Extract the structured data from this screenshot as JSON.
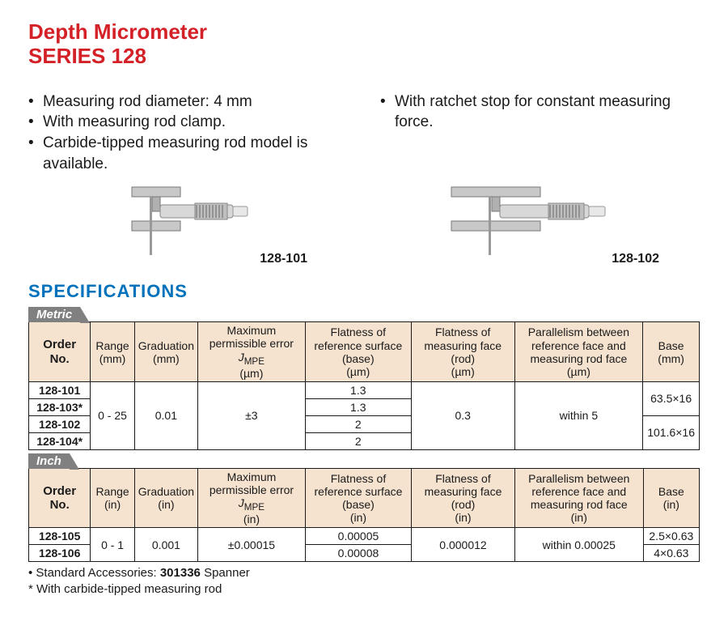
{
  "title_line1": "Depth Micrometer",
  "title_line2": "SERIES 128",
  "title_color": "#d42027",
  "features_left": [
    "Measuring rod diameter: 4 mm",
    "With measuring rod clamp.",
    "Carbide-tipped measuring rod model is available."
  ],
  "features_right": [
    "With ratchet stop for constant measuring force."
  ],
  "image_labels": {
    "left": "128-101",
    "right": "128-102"
  },
  "spec_heading": "SPECIFICATIONS",
  "spec_heading_color": "#0072bc",
  "tabs": {
    "metric": "Metric",
    "inch": "Inch"
  },
  "metric_table": {
    "header_bg": "#f5e3d0",
    "columns": [
      "Order No.",
      "Range (mm)",
      "Graduation (mm)",
      "Maximum permissible error JMPE (µm)",
      "Flatness of reference surface (base) (µm)",
      "Flatness of measuring face (rod) (µm)",
      "Parallelism between reference face and measuring rod face (µm)",
      "Base (mm)"
    ],
    "col_widths": [
      "80",
      "55",
      "75",
      "140",
      "140",
      "135",
      "170",
      "70"
    ],
    "rows": [
      {
        "order": "128-101",
        "flatness": "1.3"
      },
      {
        "order": "128-103*",
        "flatness": "1.3"
      },
      {
        "order": "128-102",
        "flatness": "2"
      },
      {
        "order": "128-104*",
        "flatness": "2"
      }
    ],
    "range": "0 - 25",
    "graduation": "0.01",
    "error": "±3",
    "face_rod": "0.3",
    "parallelism": "within 5",
    "base": [
      "63.5×16",
      "101.6×16"
    ]
  },
  "inch_table": {
    "columns": [
      "Order No.",
      "Range (in)",
      "Graduation (in)",
      "Maximum permissible error JMPE (in)",
      "Flatness of reference surface (base) (in)",
      "Flatness of measuring face (rod) (in)",
      "Parallelism between reference face and measuring rod face (in)",
      "Base (in)"
    ],
    "rows": [
      {
        "order": "128-105",
        "flatness": "0.00005",
        "base": "2.5×0.63"
      },
      {
        "order": "128-106",
        "flatness": "0.00008",
        "base": "4×0.63"
      }
    ],
    "range": "0 - 1",
    "graduation": "0.001",
    "error": "±0.00015",
    "face_rod": "0.000012",
    "parallelism": "within 0.00025"
  },
  "footnotes": [
    "• Standard Accessories: 301336 Spanner",
    "* With carbide-tipped measuring rod"
  ]
}
